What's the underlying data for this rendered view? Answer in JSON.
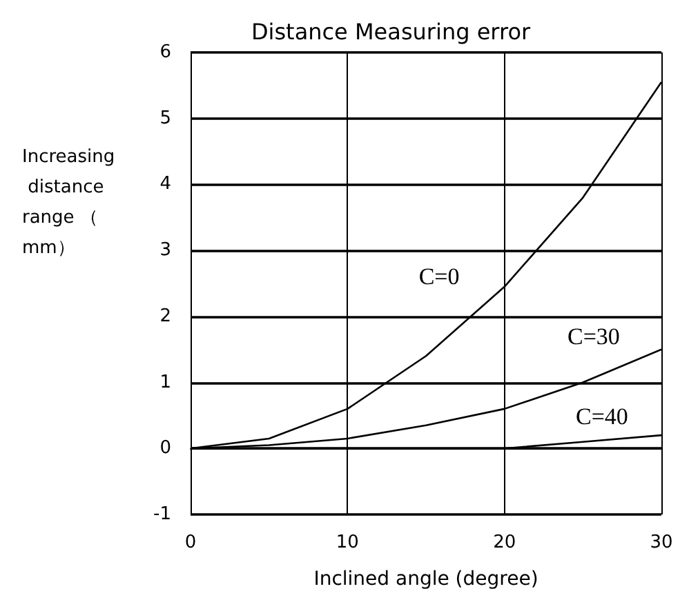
{
  "chart_data": {
    "type": "line",
    "title": "Distance Measuring error",
    "xlabel": "Inclined angle (degree)",
    "ylabel": "Increasing distance range （mm）",
    "x": [
      0,
      5,
      10,
      15,
      20,
      25,
      30
    ],
    "series": [
      {
        "name": "C=0",
        "color": "#000000",
        "values": [
          0,
          0.15,
          0.6,
          1.4,
          2.45,
          3.8,
          5.55
        ]
      },
      {
        "name": "C=30",
        "color": "#000000",
        "values": [
          0,
          0.05,
          0.15,
          0.35,
          0.6,
          1.0,
          1.5
        ]
      },
      {
        "name": "C=40",
        "color": "#000000",
        "values": [
          0,
          0,
          0,
          0,
          0,
          0.1,
          0.2
        ]
      }
    ],
    "xlim": [
      0,
      30
    ],
    "xticks": [
      0,
      10,
      20,
      30
    ],
    "ylim": [
      -1,
      6
    ],
    "yticks": [
      -1,
      0,
      1,
      2,
      3,
      4,
      5,
      6
    ],
    "grid": true,
    "legend": false,
    "marker": "none",
    "line_style": "solid"
  }
}
